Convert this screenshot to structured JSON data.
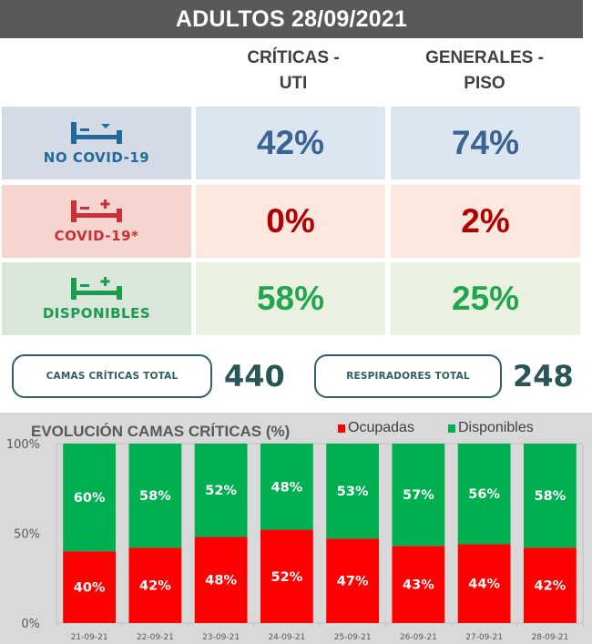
{
  "header": {
    "title": "ADULTOS  28/09/2021"
  },
  "columns": [
    {
      "line1": "CRÍTICAS -",
      "line2": "UTI"
    },
    {
      "line1": "GENERALES  -",
      "line2": "PISO"
    }
  ],
  "rows": [
    {
      "label": "NO COVID-19",
      "icon": "bed-icon",
      "color": "#1f6b99",
      "criticas": "42%",
      "generales": "74%"
    },
    {
      "label": "COVID-19*",
      "icon": "bed-icon",
      "color": "#c9303a",
      "criticas": "0%",
      "generales": "2%"
    },
    {
      "label": "DISPONIBLES",
      "icon": "bed-icon",
      "color": "#1c9a4d",
      "criticas": "58%",
      "generales": "25%"
    }
  ],
  "totals": [
    {
      "label": "CAMAS CRÍTICAS TOTAL",
      "value": "440"
    },
    {
      "label": "RESPIRADORES TOTAL",
      "value": "248"
    }
  ],
  "chart_data": {
    "type": "bar",
    "stacked": true,
    "title": "EVOLUCIÓN CAMAS CRÍTICAS (%)",
    "categories": [
      "21-09-21",
      "22-09-21",
      "23-09-21",
      "24-09-21",
      "25-09-21",
      "26-09-21",
      "27-09-21",
      "28-09-21"
    ],
    "series": [
      {
        "name": "Ocupadas",
        "color": "#ff0000",
        "values": [
          40,
          42,
          48,
          52,
          47,
          43,
          44,
          42
        ]
      },
      {
        "name": "Disponibles",
        "color": "#00b050",
        "values": [
          60,
          58,
          52,
          48,
          53,
          57,
          56,
          58
        ]
      }
    ],
    "yticks": [
      "0%",
      "50%",
      "100%"
    ],
    "ylim": [
      0,
      100
    ],
    "xlabel": "",
    "ylabel": "",
    "grid": false,
    "legend": "top-right"
  }
}
